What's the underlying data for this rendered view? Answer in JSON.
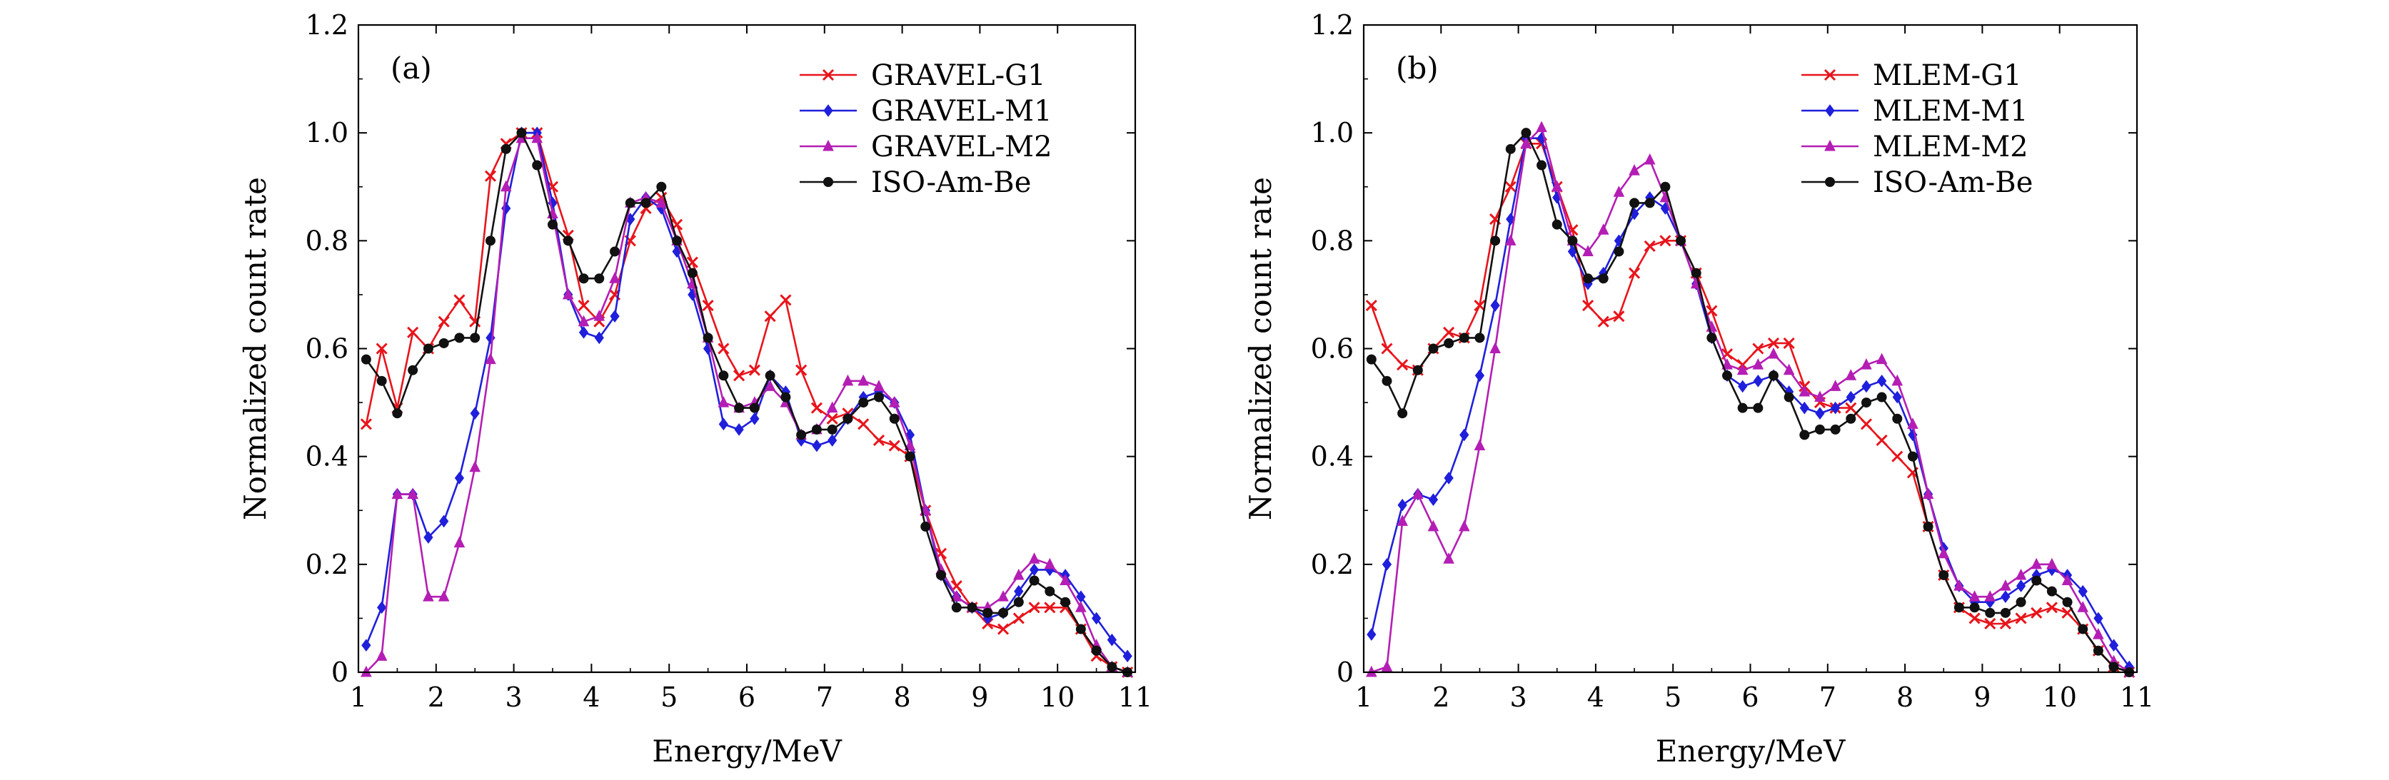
{
  "chart_data": [
    {
      "type": "line",
      "panel_label": "(a)",
      "xlabel": "Energy/MeV",
      "ylabel": "Normalized count rate",
      "xlim": [
        1,
        11
      ],
      "ylim": [
        0,
        1.2
      ],
      "xticks": [
        "1",
        "2",
        "3",
        "4",
        "5",
        "6",
        "7",
        "8",
        "9",
        "10",
        "11"
      ],
      "yticks": [
        "0",
        "0.2",
        "0.4",
        "0.6",
        "0.8",
        "1.0",
        "1.2"
      ],
      "legend_position": "top-right",
      "series": [
        {
          "name": "GRAVEL-G1",
          "color": "#e8141b",
          "marker": "x",
          "x": [
            1.1,
            1.3,
            1.5,
            1.7,
            1.9,
            2.1,
            2.3,
            2.5,
            2.7,
            2.9,
            3.1,
            3.3,
            3.5,
            3.7,
            3.9,
            4.1,
            4.3,
            4.5,
            4.7,
            4.9,
            5.1,
            5.3,
            5.5,
            5.7,
            5.9,
            6.1,
            6.3,
            6.5,
            6.7,
            6.9,
            7.1,
            7.3,
            7.5,
            7.7,
            7.9,
            8.1,
            8.3,
            8.5,
            8.7,
            8.9,
            9.1,
            9.3,
            9.5,
            9.7,
            9.9,
            10.1,
            10.3,
            10.5,
            10.7,
            10.9
          ],
          "y": [
            0.46,
            0.6,
            0.49,
            0.63,
            0.6,
            0.65,
            0.69,
            0.65,
            0.92,
            0.98,
            1.0,
            1.0,
            0.9,
            0.81,
            0.68,
            0.65,
            0.7,
            0.8,
            0.86,
            0.88,
            0.83,
            0.76,
            0.68,
            0.6,
            0.55,
            0.56,
            0.66,
            0.69,
            0.56,
            0.49,
            0.47,
            0.48,
            0.46,
            0.43,
            0.42,
            0.4,
            0.3,
            0.22,
            0.16,
            0.12,
            0.09,
            0.08,
            0.1,
            0.12,
            0.12,
            0.12,
            0.08,
            0.03,
            0.01,
            0.0
          ]
        },
        {
          "name": "GRAVEL-M1",
          "color": "#1f1fdc",
          "marker": "diamond",
          "x": [
            1.1,
            1.3,
            1.5,
            1.7,
            1.9,
            2.1,
            2.3,
            2.5,
            2.7,
            2.9,
            3.1,
            3.3,
            3.5,
            3.7,
            3.9,
            4.1,
            4.3,
            4.5,
            4.7,
            4.9,
            5.1,
            5.3,
            5.5,
            5.7,
            5.9,
            6.1,
            6.3,
            6.5,
            6.7,
            6.9,
            7.1,
            7.3,
            7.5,
            7.7,
            7.9,
            8.1,
            8.3,
            8.5,
            8.7,
            8.9,
            9.1,
            9.3,
            9.5,
            9.7,
            9.9,
            10.1,
            10.3,
            10.5,
            10.7,
            10.9
          ],
          "y": [
            0.05,
            0.12,
            0.33,
            0.33,
            0.25,
            0.28,
            0.36,
            0.48,
            0.62,
            0.86,
            1.0,
            1.0,
            0.87,
            0.7,
            0.63,
            0.62,
            0.66,
            0.84,
            0.88,
            0.86,
            0.78,
            0.7,
            0.6,
            0.46,
            0.45,
            0.47,
            0.55,
            0.52,
            0.43,
            0.42,
            0.43,
            0.47,
            0.51,
            0.52,
            0.5,
            0.44,
            0.3,
            0.18,
            0.14,
            0.12,
            0.1,
            0.11,
            0.15,
            0.19,
            0.19,
            0.18,
            0.14,
            0.1,
            0.06,
            0.03
          ]
        },
        {
          "name": "GRAVEL-M2",
          "color": "#b41eb4",
          "marker": "triangle",
          "x": [
            1.1,
            1.3,
            1.5,
            1.7,
            1.9,
            2.1,
            2.3,
            2.5,
            2.7,
            2.9,
            3.1,
            3.3,
            3.5,
            3.7,
            3.9,
            4.1,
            4.3,
            4.5,
            4.7,
            4.9,
            5.1,
            5.3,
            5.5,
            5.7,
            5.9,
            6.1,
            6.3,
            6.5,
            6.7,
            6.9,
            7.1,
            7.3,
            7.5,
            7.7,
            7.9,
            8.1,
            8.3,
            8.5,
            8.7,
            8.9,
            9.1,
            9.3,
            9.5,
            9.7,
            9.9,
            10.1,
            10.3,
            10.5,
            10.7,
            10.9
          ],
          "y": [
            0.0,
            0.03,
            0.33,
            0.33,
            0.14,
            0.14,
            0.24,
            0.38,
            0.58,
            0.9,
            0.99,
            0.99,
            0.85,
            0.7,
            0.65,
            0.66,
            0.73,
            0.87,
            0.88,
            0.87,
            0.8,
            0.72,
            0.62,
            0.5,
            0.49,
            0.5,
            0.53,
            0.5,
            0.44,
            0.45,
            0.49,
            0.54,
            0.54,
            0.53,
            0.5,
            0.42,
            0.3,
            0.19,
            0.14,
            0.12,
            0.12,
            0.14,
            0.18,
            0.21,
            0.2,
            0.17,
            0.12,
            0.05,
            0.01,
            0.0
          ]
        },
        {
          "name": "ISO-Am-Be",
          "color": "#111111",
          "marker": "circle",
          "x": [
            1.1,
            1.3,
            1.5,
            1.7,
            1.9,
            2.1,
            2.3,
            2.5,
            2.7,
            2.9,
            3.1,
            3.3,
            3.5,
            3.7,
            3.9,
            4.1,
            4.3,
            4.5,
            4.7,
            4.9,
            5.1,
            5.3,
            5.5,
            5.7,
            5.9,
            6.1,
            6.3,
            6.5,
            6.7,
            6.9,
            7.1,
            7.3,
            7.5,
            7.7,
            7.9,
            8.1,
            8.3,
            8.5,
            8.7,
            8.9,
            9.1,
            9.3,
            9.5,
            9.7,
            9.9,
            10.1,
            10.3,
            10.5,
            10.7,
            10.9
          ],
          "y": [
            0.58,
            0.54,
            0.48,
            0.56,
            0.6,
            0.61,
            0.62,
            0.62,
            0.8,
            0.97,
            1.0,
            0.94,
            0.83,
            0.8,
            0.73,
            0.73,
            0.78,
            0.87,
            0.87,
            0.9,
            0.8,
            0.74,
            0.62,
            0.55,
            0.49,
            0.49,
            0.55,
            0.51,
            0.44,
            0.45,
            0.45,
            0.47,
            0.5,
            0.51,
            0.47,
            0.4,
            0.27,
            0.18,
            0.12,
            0.12,
            0.11,
            0.11,
            0.13,
            0.17,
            0.15,
            0.13,
            0.08,
            0.04,
            0.01,
            0.0
          ]
        }
      ]
    },
    {
      "type": "line",
      "panel_label": "(b)",
      "xlabel": "Energy/MeV",
      "ylabel": "Normalized count rate",
      "xlim": [
        1,
        11
      ],
      "ylim": [
        0,
        1.2
      ],
      "xticks": [
        "1",
        "2",
        "3",
        "4",
        "5",
        "6",
        "7",
        "8",
        "9",
        "10",
        "11"
      ],
      "yticks": [
        "0",
        "0.2",
        "0.4",
        "0.6",
        "0.8",
        "1.0",
        "1.2"
      ],
      "legend_position": "top-right",
      "series": [
        {
          "name": "MLEM-G1",
          "color": "#e8141b",
          "marker": "x",
          "x": [
            1.1,
            1.3,
            1.5,
            1.7,
            1.9,
            2.1,
            2.3,
            2.5,
            2.7,
            2.9,
            3.1,
            3.3,
            3.5,
            3.7,
            3.9,
            4.1,
            4.3,
            4.5,
            4.7,
            4.9,
            5.1,
            5.3,
            5.5,
            5.7,
            5.9,
            6.1,
            6.3,
            6.5,
            6.7,
            6.9,
            7.1,
            7.3,
            7.5,
            7.7,
            7.9,
            8.1,
            8.3,
            8.5,
            8.7,
            8.9,
            9.1,
            9.3,
            9.5,
            9.7,
            9.9,
            10.1,
            10.3,
            10.5,
            10.7,
            10.9
          ],
          "y": [
            0.68,
            0.6,
            0.57,
            0.56,
            0.6,
            0.63,
            0.62,
            0.68,
            0.84,
            0.9,
            0.98,
            0.98,
            0.9,
            0.82,
            0.68,
            0.65,
            0.66,
            0.74,
            0.79,
            0.8,
            0.8,
            0.74,
            0.67,
            0.59,
            0.57,
            0.6,
            0.61,
            0.61,
            0.53,
            0.5,
            0.49,
            0.49,
            0.46,
            0.43,
            0.4,
            0.37,
            0.27,
            0.18,
            0.12,
            0.1,
            0.09,
            0.09,
            0.1,
            0.11,
            0.12,
            0.11,
            0.08,
            0.04,
            0.01,
            0.0
          ]
        },
        {
          "name": "MLEM-M1",
          "color": "#1f1fdc",
          "marker": "diamond",
          "x": [
            1.1,
            1.3,
            1.5,
            1.7,
            1.9,
            2.1,
            2.3,
            2.5,
            2.7,
            2.9,
            3.1,
            3.3,
            3.5,
            3.7,
            3.9,
            4.1,
            4.3,
            4.5,
            4.7,
            4.9,
            5.1,
            5.3,
            5.5,
            5.7,
            5.9,
            6.1,
            6.3,
            6.5,
            6.7,
            6.9,
            7.1,
            7.3,
            7.5,
            7.7,
            7.9,
            8.1,
            8.3,
            8.5,
            8.7,
            8.9,
            9.1,
            9.3,
            9.5,
            9.7,
            9.9,
            10.1,
            10.3,
            10.5,
            10.7,
            10.9
          ],
          "y": [
            0.07,
            0.2,
            0.31,
            0.33,
            0.32,
            0.36,
            0.44,
            0.55,
            0.68,
            0.84,
            0.99,
            0.99,
            0.88,
            0.78,
            0.72,
            0.74,
            0.8,
            0.85,
            0.88,
            0.86,
            0.8,
            0.72,
            0.62,
            0.55,
            0.53,
            0.54,
            0.55,
            0.52,
            0.49,
            0.48,
            0.49,
            0.51,
            0.53,
            0.54,
            0.51,
            0.44,
            0.33,
            0.23,
            0.16,
            0.13,
            0.13,
            0.14,
            0.16,
            0.18,
            0.19,
            0.18,
            0.15,
            0.1,
            0.05,
            0.01
          ]
        },
        {
          "name": "MLEM-M2",
          "color": "#b41eb4",
          "marker": "triangle",
          "x": [
            1.1,
            1.3,
            1.5,
            1.7,
            1.9,
            2.1,
            2.3,
            2.5,
            2.7,
            2.9,
            3.1,
            3.3,
            3.5,
            3.7,
            3.9,
            4.1,
            4.3,
            4.5,
            4.7,
            4.9,
            5.1,
            5.3,
            5.5,
            5.7,
            5.9,
            6.1,
            6.3,
            6.5,
            6.7,
            6.9,
            7.1,
            7.3,
            7.5,
            7.7,
            7.9,
            8.1,
            8.3,
            8.5,
            8.7,
            8.9,
            9.1,
            9.3,
            9.5,
            9.7,
            9.9,
            10.1,
            10.3,
            10.5,
            10.7,
            10.9
          ],
          "y": [
            0.0,
            0.01,
            0.28,
            0.33,
            0.27,
            0.21,
            0.27,
            0.42,
            0.6,
            0.8,
            0.98,
            1.01,
            0.9,
            0.8,
            0.78,
            0.82,
            0.89,
            0.93,
            0.95,
            0.88,
            0.8,
            0.72,
            0.64,
            0.57,
            0.56,
            0.57,
            0.59,
            0.56,
            0.52,
            0.51,
            0.53,
            0.55,
            0.57,
            0.58,
            0.54,
            0.46,
            0.33,
            0.22,
            0.16,
            0.14,
            0.14,
            0.16,
            0.18,
            0.2,
            0.2,
            0.17,
            0.12,
            0.07,
            0.02,
            0.0
          ]
        },
        {
          "name": "ISO-Am-Be",
          "color": "#111111",
          "marker": "circle",
          "x": [
            1.1,
            1.3,
            1.5,
            1.7,
            1.9,
            2.1,
            2.3,
            2.5,
            2.7,
            2.9,
            3.1,
            3.3,
            3.5,
            3.7,
            3.9,
            4.1,
            4.3,
            4.5,
            4.7,
            4.9,
            5.1,
            5.3,
            5.5,
            5.7,
            5.9,
            6.1,
            6.3,
            6.5,
            6.7,
            6.9,
            7.1,
            7.3,
            7.5,
            7.7,
            7.9,
            8.1,
            8.3,
            8.5,
            8.7,
            8.9,
            9.1,
            9.3,
            9.5,
            9.7,
            9.9,
            10.1,
            10.3,
            10.5,
            10.7,
            10.9
          ],
          "y": [
            0.58,
            0.54,
            0.48,
            0.56,
            0.6,
            0.61,
            0.62,
            0.62,
            0.8,
            0.97,
            1.0,
            0.94,
            0.83,
            0.8,
            0.73,
            0.73,
            0.78,
            0.87,
            0.87,
            0.9,
            0.8,
            0.74,
            0.62,
            0.55,
            0.49,
            0.49,
            0.55,
            0.51,
            0.44,
            0.45,
            0.45,
            0.47,
            0.5,
            0.51,
            0.47,
            0.4,
            0.27,
            0.18,
            0.12,
            0.12,
            0.11,
            0.11,
            0.13,
            0.17,
            0.15,
            0.13,
            0.08,
            0.04,
            0.01,
            0.0
          ]
        }
      ]
    }
  ]
}
